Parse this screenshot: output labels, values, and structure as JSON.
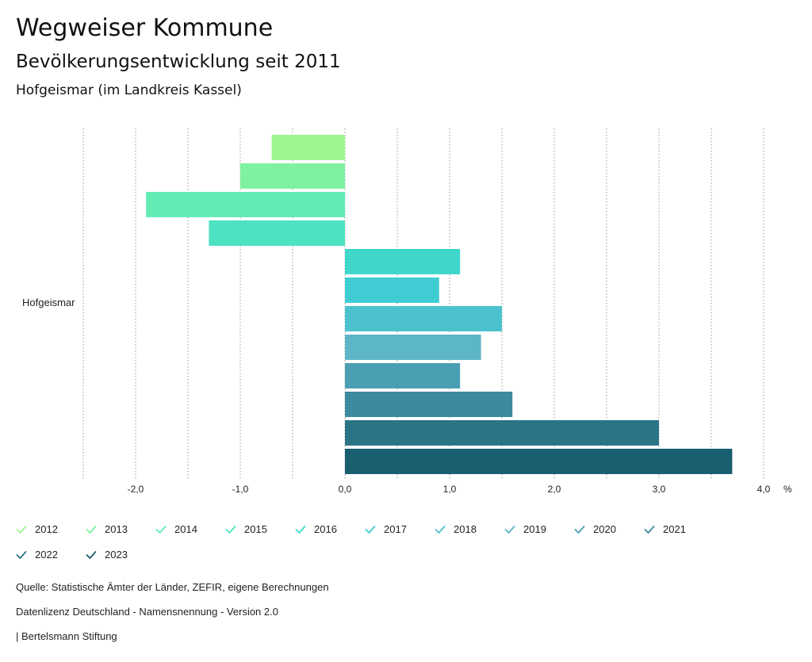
{
  "header": {
    "title": "Wegweiser Kommune",
    "subtitle": "Bevölkerungsentwicklung seit 2011",
    "region": "Hofgeismar (im Landkreis Kassel)"
  },
  "chart_data": {
    "type": "bar",
    "orientation": "horizontal",
    "category": "Hofgeismar",
    "unit_label": "%",
    "xlim": [
      -2.5,
      4.0
    ],
    "tick_values": [
      -2.0,
      -1.0,
      0.0,
      1.0,
      2.0,
      3.0,
      4.0
    ],
    "tick_labels": [
      "-2,0",
      "-1,0",
      "0,0",
      "1,0",
      "2,0",
      "3,0",
      "4,0"
    ],
    "series": [
      {
        "name": "2012",
        "value": -0.7,
        "color": "#9cf78f"
      },
      {
        "name": "2013",
        "value": -1.0,
        "color": "#7ff2a2"
      },
      {
        "name": "2014",
        "value": -1.9,
        "color": "#62ecb4"
      },
      {
        "name": "2015",
        "value": -1.3,
        "color": "#4de2c2"
      },
      {
        "name": "2016",
        "value": 1.1,
        "color": "#40d6cc"
      },
      {
        "name": "2017",
        "value": 0.9,
        "color": "#40ccd3"
      },
      {
        "name": "2018",
        "value": 1.5,
        "color": "#4dc2cf"
      },
      {
        "name": "2019",
        "value": 1.3,
        "color": "#5db5c8"
      },
      {
        "name": "2020",
        "value": 1.1,
        "color": "#4b9fb2"
      },
      {
        "name": "2021",
        "value": 1.6,
        "color": "#3c8a9e"
      },
      {
        "name": "2022",
        "value": 3.0,
        "color": "#2a7486"
      },
      {
        "name": "2023",
        "value": 3.7,
        "color": "#185f70"
      }
    ]
  },
  "footer": {
    "source": "Quelle: Statistische Ämter der Länder, ZEFIR, eigene Berechnungen",
    "license": "Datenlizenz Deutschland - Namensnennung - Version 2.0",
    "publisher": "| Bertelsmann Stiftung"
  }
}
